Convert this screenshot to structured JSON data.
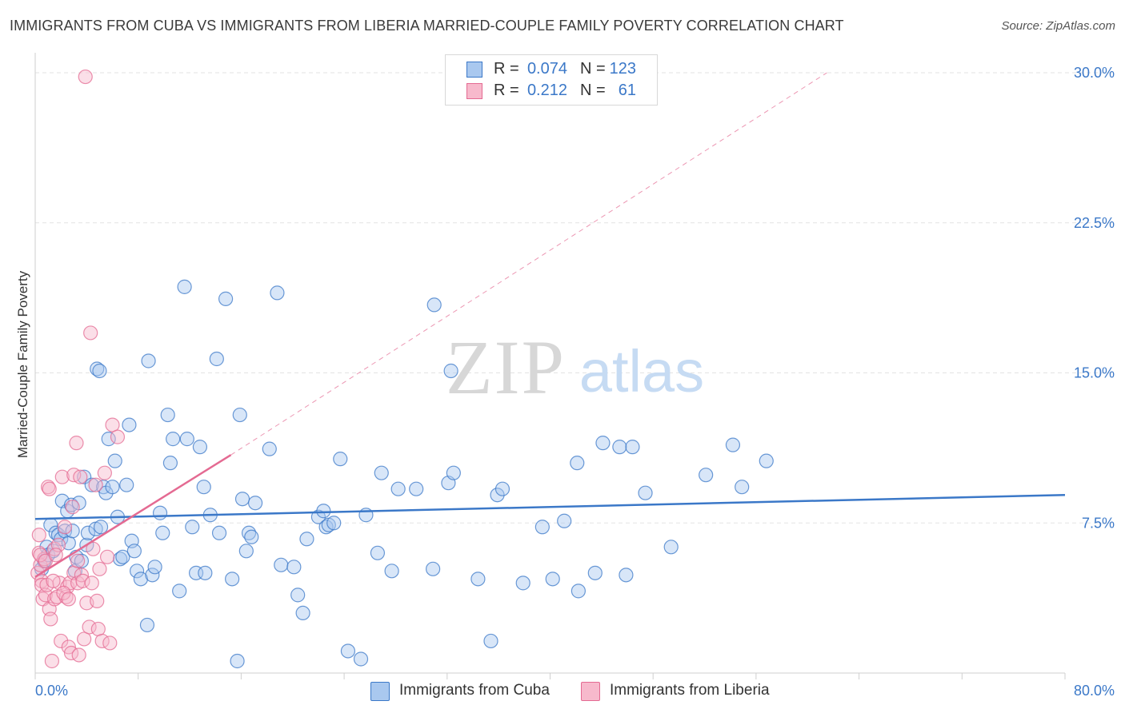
{
  "title": "IMMIGRANTS FROM CUBA VS IMMIGRANTS FROM LIBERIA MARRIED-COUPLE FAMILY POVERTY CORRELATION CHART",
  "source": "Source: ZipAtlas.com",
  "colors": {
    "blue": "#3b78c8",
    "blue_fill": "#a9c8ef",
    "pink": "#e46a92",
    "pink_fill": "#f7b9cc",
    "grid": "#e3e3e3"
  },
  "legend_top": {
    "rows": [
      {
        "r_label": "R =",
        "r_value": "0.074",
        "n_label": "N =",
        "n_value": "123"
      },
      {
        "r_label": "R =",
        "r_value": "0.212",
        "n_label": "N =",
        "n_value": "61"
      }
    ]
  },
  "legend_bottom": {
    "items": [
      {
        "label": "Immigrants from Cuba"
      },
      {
        "label": "Immigrants from Liberia"
      }
    ]
  },
  "chart_data": {
    "type": "scatter",
    "title": "IMMIGRANTS FROM CUBA VS IMMIGRANTS FROM LIBERIA MARRIED-COUPLE FAMILY POVERTY CORRELATION CHART",
    "xlabel": "",
    "ylabel": "Married-Couple Family Poverty",
    "xlim": [
      0,
      80
    ],
    "ylim": [
      0,
      31
    ],
    "x_tick_labels": [
      "0.0%",
      "80.0%"
    ],
    "y_ticks": [
      7.5,
      15.0,
      22.5,
      30.0
    ],
    "y_tick_labels": [
      "7.5%",
      "15.0%",
      "22.5%",
      "30.0%"
    ],
    "grid": true,
    "watermark": "ZIPatlas",
    "series": [
      {
        "name": "Immigrants from Cuba",
        "r": 0.074,
        "n": 123,
        "trend": {
          "x": [
            0,
            80
          ],
          "y": [
            7.7,
            8.9
          ]
        },
        "points": [
          [
            0.5,
            5.2
          ],
          [
            0.7,
            5.6
          ],
          [
            0.9,
            6.3
          ],
          [
            1.0,
            5.9
          ],
          [
            1.2,
            7.4
          ],
          [
            1.4,
            6.1
          ],
          [
            1.6,
            7.0
          ],
          [
            1.8,
            6.9
          ],
          [
            2.0,
            6.7
          ],
          [
            2.1,
            8.6
          ],
          [
            2.3,
            7.1
          ],
          [
            2.5,
            8.1
          ],
          [
            2.6,
            6.5
          ],
          [
            2.8,
            8.4
          ],
          [
            2.9,
            7.1
          ],
          [
            3.1,
            5.1
          ],
          [
            3.2,
            5.8
          ],
          [
            3.4,
            8.5
          ],
          [
            3.6,
            5.6
          ],
          [
            3.8,
            9.8
          ],
          [
            4.0,
            6.4
          ],
          [
            4.1,
            7.0
          ],
          [
            4.4,
            9.4
          ],
          [
            4.7,
            7.2
          ],
          [
            4.8,
            15.2
          ],
          [
            5.0,
            15.1
          ],
          [
            5.1,
            7.3
          ],
          [
            5.3,
            9.3
          ],
          [
            5.5,
            9.0
          ],
          [
            5.7,
            11.7
          ],
          [
            6.0,
            9.3
          ],
          [
            6.2,
            10.6
          ],
          [
            6.4,
            7.8
          ],
          [
            6.6,
            5.7
          ],
          [
            6.8,
            5.8
          ],
          [
            7.1,
            9.4
          ],
          [
            7.3,
            12.4
          ],
          [
            7.5,
            6.6
          ],
          [
            7.7,
            6.1
          ],
          [
            7.9,
            5.1
          ],
          [
            8.2,
            4.7
          ],
          [
            8.7,
            2.4
          ],
          [
            8.8,
            15.6
          ],
          [
            9.1,
            4.9
          ],
          [
            9.3,
            5.3
          ],
          [
            9.7,
            8.0
          ],
          [
            9.9,
            7.0
          ],
          [
            10.3,
            12.9
          ],
          [
            10.5,
            10.5
          ],
          [
            10.7,
            11.7
          ],
          [
            11.2,
            4.1
          ],
          [
            11.6,
            19.3
          ],
          [
            11.8,
            11.7
          ],
          [
            12.2,
            7.3
          ],
          [
            12.5,
            5.0
          ],
          [
            12.8,
            11.3
          ],
          [
            13.1,
            9.3
          ],
          [
            13.2,
            5.0
          ],
          [
            13.6,
            7.9
          ],
          [
            14.1,
            15.7
          ],
          [
            14.3,
            7.0
          ],
          [
            14.8,
            18.7
          ],
          [
            15.3,
            4.7
          ],
          [
            15.7,
            0.6
          ],
          [
            15.9,
            12.9
          ],
          [
            16.1,
            8.7
          ],
          [
            16.4,
            6.1
          ],
          [
            16.6,
            7.0
          ],
          [
            16.8,
            6.8
          ],
          [
            17.1,
            8.5
          ],
          [
            18.2,
            11.2
          ],
          [
            18.8,
            19.0
          ],
          [
            19.1,
            5.4
          ],
          [
            20.1,
            5.3
          ],
          [
            20.4,
            3.9
          ],
          [
            20.8,
            3.0
          ],
          [
            21.1,
            6.7
          ],
          [
            22.0,
            7.8
          ],
          [
            22.4,
            8.1
          ],
          [
            22.6,
            7.3
          ],
          [
            22.8,
            7.4
          ],
          [
            23.2,
            7.5
          ],
          [
            23.7,
            10.7
          ],
          [
            24.3,
            1.1
          ],
          [
            25.3,
            0.7
          ],
          [
            25.7,
            7.9
          ],
          [
            26.6,
            6.0
          ],
          [
            26.9,
            10.0
          ],
          [
            27.7,
            5.1
          ],
          [
            28.2,
            9.2
          ],
          [
            29.6,
            9.2
          ],
          [
            30.9,
            5.2
          ],
          [
            31.0,
            18.4
          ],
          [
            32.1,
            9.5
          ],
          [
            32.5,
            10.0
          ],
          [
            32.3,
            15.1
          ],
          [
            34.4,
            4.7
          ],
          [
            35.4,
            1.6
          ],
          [
            35.9,
            8.9
          ],
          [
            36.3,
            9.2
          ],
          [
            37.9,
            4.5
          ],
          [
            39.4,
            7.3
          ],
          [
            40.2,
            4.7
          ],
          [
            41.1,
            7.6
          ],
          [
            42.1,
            10.5
          ],
          [
            42.2,
            4.1
          ],
          [
            43.5,
            5.0
          ],
          [
            44.1,
            11.5
          ],
          [
            45.4,
            11.3
          ],
          [
            45.9,
            4.9
          ],
          [
            46.4,
            11.3
          ],
          [
            47.4,
            9.0
          ],
          [
            49.4,
            6.3
          ],
          [
            52.1,
            9.9
          ],
          [
            54.2,
            11.4
          ],
          [
            54.9,
            9.3
          ],
          [
            56.8,
            10.6
          ]
        ]
      },
      {
        "name": "Immigrants from Liberia",
        "r": 0.212,
        "n": 61,
        "trend_solid": {
          "x": [
            0,
            15.2
          ],
          "y": [
            4.8,
            10.9
          ]
        },
        "trend_dashed": {
          "x": [
            15.2,
            61.5
          ],
          "y": [
            10.9,
            30.0
          ]
        },
        "points": [
          [
            0.2,
            5.0
          ],
          [
            0.3,
            6.0
          ],
          [
            0.3,
            6.9
          ],
          [
            0.4,
            5.4
          ],
          [
            0.5,
            4.6
          ],
          [
            0.5,
            4.4
          ],
          [
            0.6,
            3.7
          ],
          [
            0.7,
            5.7
          ],
          [
            0.8,
            3.9
          ],
          [
            0.9,
            4.4
          ],
          [
            1.0,
            9.3
          ],
          [
            1.1,
            3.2
          ],
          [
            1.2,
            2.7
          ],
          [
            1.3,
            0.6
          ],
          [
            1.5,
            6.2
          ],
          [
            1.5,
            3.7
          ],
          [
            1.7,
            3.8
          ],
          [
            1.8,
            6.4
          ],
          [
            1.9,
            4.5
          ],
          [
            2.0,
            1.6
          ],
          [
            2.1,
            9.8
          ],
          [
            2.3,
            7.3
          ],
          [
            2.4,
            3.8
          ],
          [
            2.5,
            4.3
          ],
          [
            2.6,
            1.3
          ],
          [
            2.7,
            4.5
          ],
          [
            2.8,
            1.0
          ],
          [
            2.9,
            8.3
          ],
          [
            3.0,
            9.9
          ],
          [
            3.0,
            5.0
          ],
          [
            3.2,
            11.5
          ],
          [
            3.3,
            4.5
          ],
          [
            3.4,
            0.9
          ],
          [
            3.5,
            9.8
          ],
          [
            3.6,
            4.9
          ],
          [
            3.7,
            4.6
          ],
          [
            3.8,
            1.7
          ],
          [
            3.9,
            29.8
          ],
          [
            4.0,
            3.5
          ],
          [
            4.2,
            2.3
          ],
          [
            4.3,
            17.0
          ],
          [
            4.4,
            4.5
          ],
          [
            4.5,
            6.2
          ],
          [
            4.7,
            9.4
          ],
          [
            4.8,
            3.6
          ],
          [
            4.9,
            2.2
          ],
          [
            5.0,
            5.2
          ],
          [
            5.2,
            1.6
          ],
          [
            5.4,
            10.0
          ],
          [
            5.6,
            5.8
          ],
          [
            5.8,
            1.5
          ],
          [
            6.0,
            12.4
          ],
          [
            6.4,
            11.8
          ],
          [
            0.4,
            5.9
          ],
          [
            0.8,
            5.6
          ],
          [
            1.4,
            4.6
          ],
          [
            1.6,
            5.9
          ],
          [
            2.2,
            4.0
          ],
          [
            2.6,
            3.7
          ],
          [
            3.3,
            5.6
          ],
          [
            1.1,
            9.2
          ]
        ]
      }
    ]
  }
}
